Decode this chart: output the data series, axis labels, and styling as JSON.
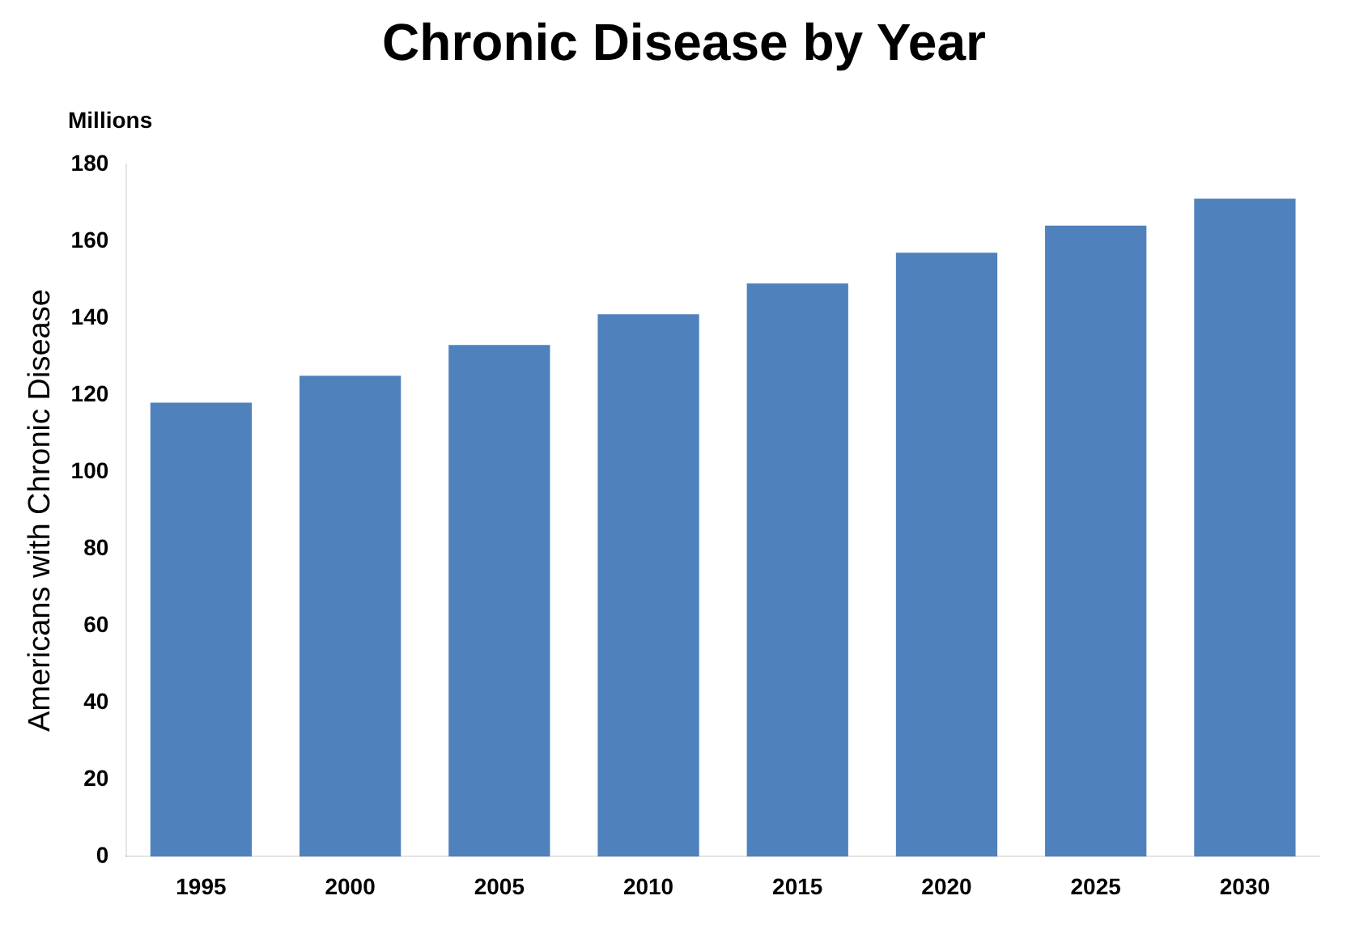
{
  "chart_data": {
    "type": "bar",
    "title": "Chronic Disease by Year",
    "ylabel": "Americans with Chronic Disease",
    "annotations": [
      "Millions"
    ],
    "categories": [
      "1995",
      "2000",
      "2005",
      "2010",
      "2015",
      "2020",
      "2025",
      "2030"
    ],
    "values": [
      118,
      125,
      133,
      141,
      149,
      157,
      164,
      171
    ],
    "color": "#4f81bd",
    "ylim": [
      0,
      180
    ],
    "yticks": [
      0,
      20,
      40,
      60,
      80,
      100,
      120,
      140,
      160,
      180
    ],
    "grid": false,
    "legend": false
  }
}
